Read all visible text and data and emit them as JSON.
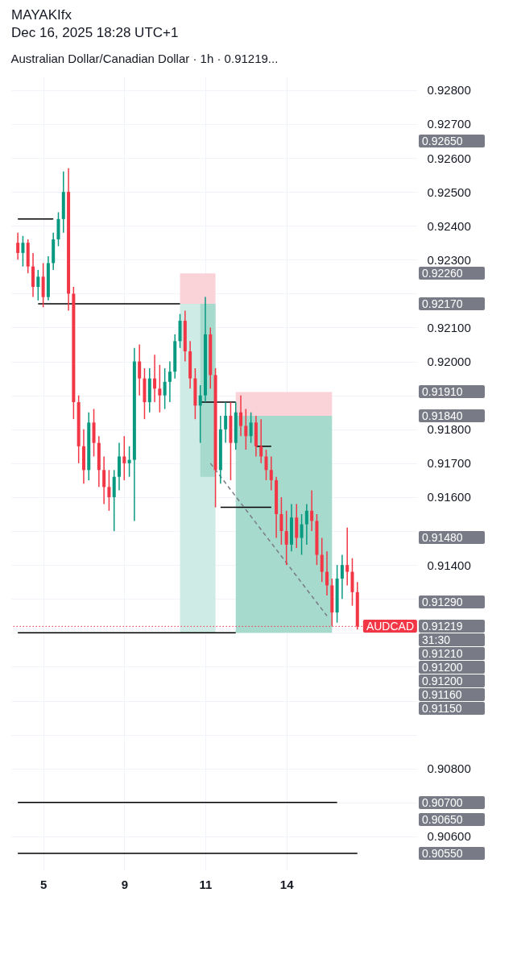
{
  "chart_data": {
    "type": "candlestick",
    "title": "Australian Dollar/Canadian Dollar · 1h · 0.91219...",
    "annotations": [
      "MAYAKIfx",
      "Dec 16, 2025 18:28 UTC+1",
      "0.92650",
      "0.92260",
      "0.92170",
      "0.91910",
      "0.91840",
      "0.91480",
      "0.91290",
      "0.91219",
      "31:30",
      "0.91210",
      "0.91200",
      "0.91200",
      "0.91160",
      "0.91150",
      "0.90700",
      "0.90650",
      "0.90550"
    ],
    "categories": [
      null,
      null,
      null,
      null,
      null,
      "5",
      null,
      null,
      null,
      null,
      null,
      null,
      null,
      null,
      null,
      null,
      null,
      null,
      null,
      null,
      null,
      "9",
      null,
      null,
      null,
      null,
      null,
      null,
      null,
      null,
      null,
      null,
      null,
      null,
      null,
      null,
      null,
      "11",
      null,
      null,
      null,
      null,
      null,
      null,
      null,
      null,
      null,
      null,
      null,
      null,
      null,
      null,
      null,
      "14",
      null,
      null,
      null,
      null,
      null,
      null,
      null,
      null,
      null,
      null,
      null,
      null,
      null,
      null
    ],
    "ohlc": [
      [
        0.9235,
        0.9238,
        0.923,
        0.9232
      ],
      [
        0.9232,
        0.9237,
        0.9228,
        0.9235
      ],
      [
        0.9235,
        0.9236,
        0.9226,
        0.9228
      ],
      [
        0.9228,
        0.9232,
        0.9219,
        0.9222
      ],
      [
        0.9222,
        0.9227,
        0.9218,
        0.9225
      ],
      [
        0.9225,
        0.9229,
        0.9216,
        0.9219
      ],
      [
        0.9219,
        0.9231,
        0.9218,
        0.9229
      ],
      [
        0.9229,
        0.9238,
        0.9227,
        0.9236
      ],
      [
        0.9236,
        0.9244,
        0.9234,
        0.9242
      ],
      [
        0.9242,
        0.9256,
        0.9238,
        0.925
      ],
      [
        0.925,
        0.9257,
        0.9215,
        0.922
      ],
      [
        0.922,
        0.9222,
        0.9183,
        0.9188
      ],
      [
        0.9188,
        0.919,
        0.917,
        0.9175
      ],
      [
        0.9175,
        0.918,
        0.9164,
        0.9168
      ],
      [
        0.9168,
        0.9185,
        0.9165,
        0.9182
      ],
      [
        0.9182,
        0.9186,
        0.9172,
        0.9176
      ],
      [
        0.9176,
        0.9178,
        0.9163,
        0.9168
      ],
      [
        0.9168,
        0.9172,
        0.9158,
        0.9163
      ],
      [
        0.9163,
        0.9168,
        0.9156,
        0.916
      ],
      [
        0.916,
        0.9168,
        0.915,
        0.9166
      ],
      [
        0.9166,
        0.9176,
        0.9162,
        0.9172
      ],
      [
        0.9172,
        0.9178,
        0.9165,
        0.917
      ],
      [
        0.917,
        0.9175,
        0.9166,
        0.9171
      ],
      [
        0.9171,
        0.9204,
        0.9153,
        0.92
      ],
      [
        0.92,
        0.9205,
        0.919,
        0.9195
      ],
      [
        0.9195,
        0.9198,
        0.9183,
        0.9188
      ],
      [
        0.9188,
        0.9198,
        0.9185,
        0.9195
      ],
      [
        0.9195,
        0.9202,
        0.9188,
        0.9192
      ],
      [
        0.9192,
        0.9199,
        0.9185,
        0.919
      ],
      [
        0.919,
        0.9198,
        0.9186,
        0.9194
      ],
      [
        0.9194,
        0.92,
        0.9188,
        0.9197
      ],
      [
        0.9197,
        0.9208,
        0.9195,
        0.9206
      ],
      [
        0.9206,
        0.9214,
        0.9204,
        0.9212
      ],
      [
        0.9212,
        0.9215,
        0.92,
        0.9203
      ],
      [
        0.9203,
        0.9206,
        0.9192,
        0.9195
      ],
      [
        0.9195,
        0.9198,
        0.9183,
        0.9187
      ],
      [
        0.9187,
        0.9193,
        0.9176,
        0.919
      ],
      [
        0.919,
        0.9219,
        0.9188,
        0.9208
      ],
      [
        0.9208,
        0.921,
        0.9192,
        0.9196
      ],
      [
        0.9196,
        0.9198,
        0.9157,
        0.9168
      ],
      [
        0.9168,
        0.9184,
        0.9164,
        0.918
      ],
      [
        0.918,
        0.9188,
        0.9176,
        0.9184
      ],
      [
        0.9184,
        0.9188,
        0.9165,
        0.9176
      ],
      [
        0.9176,
        0.9188,
        0.9174,
        0.9185
      ],
      [
        0.9185,
        0.919,
        0.9178,
        0.9181
      ],
      [
        0.9181,
        0.9186,
        0.9174,
        0.9178
      ],
      [
        0.9178,
        0.9185,
        0.9176,
        0.9182
      ],
      [
        0.9182,
        0.9184,
        0.9172,
        0.9175
      ],
      [
        0.9175,
        0.9183,
        0.917,
        0.9172
      ],
      [
        0.9172,
        0.9174,
        0.9165,
        0.9168
      ],
      [
        0.9168,
        0.9172,
        0.9162,
        0.9165
      ],
      [
        0.9165,
        0.9166,
        0.9148,
        0.9155
      ],
      [
        0.9155,
        0.916,
        0.9146,
        0.915
      ],
      [
        0.915,
        0.9156,
        0.914,
        0.9146
      ],
      [
        0.9146,
        0.9158,
        0.9144,
        0.9154
      ],
      [
        0.9154,
        0.9158,
        0.9145,
        0.9148
      ],
      [
        0.9148,
        0.9155,
        0.9143,
        0.9152
      ],
      [
        0.9152,
        0.9158,
        0.9146,
        0.9156
      ],
      [
        0.9156,
        0.9162,
        0.915,
        0.9153
      ],
      [
        0.9153,
        0.9155,
        0.914,
        0.9143
      ],
      [
        0.9143,
        0.9148,
        0.9135,
        0.9138
      ],
      [
        0.9138,
        0.9144,
        0.9131,
        0.9134
      ],
      [
        0.9134,
        0.9136,
        0.9122,
        0.9126
      ],
      [
        0.9126,
        0.914,
        0.9123,
        0.9136
      ],
      [
        0.9136,
        0.9143,
        0.913,
        0.914
      ],
      [
        0.914,
        0.9151,
        0.9134,
        0.9138
      ],
      [
        0.9138,
        0.9142,
        0.9128,
        0.9132
      ],
      [
        0.9132,
        0.9135,
        0.9121,
        0.91219
      ]
    ],
    "series": [
      {
        "type": "line",
        "color": "#cfebe5",
        "values": [
          null,
          null,
          null,
          null,
          null,
          null,
          null,
          null,
          null,
          null,
          null,
          null,
          null,
          null,
          null,
          null,
          null,
          null,
          null,
          null,
          null,
          null,
          null,
          null,
          null,
          null,
          null,
          null,
          null,
          null,
          null,
          null,
          null,
          null,
          null,
          null,
          null,
          null,
          null,
          null,
          null,
          null,
          null,
          null,
          null,
          null,
          null,
          null,
          null,
          null,
          null,
          null,
          null,
          null,
          null,
          null,
          null,
          null,
          null,
          null,
          null,
          null,
          null,
          null,
          null,
          null,
          null,
          null
        ],
        "lower": [
          null,
          null,
          null,
          null,
          null,
          null,
          null,
          null,
          null,
          null,
          null,
          null,
          null,
          null,
          null,
          null,
          null,
          null,
          null,
          null,
          null,
          null,
          null,
          null,
          null,
          null,
          null,
          null,
          null,
          null,
          null,
          null,
          0.912,
          0.912,
          0.912,
          0.912,
          0.912,
          0.912,
          0.912,
          0.912,
          null,
          null,
          null,
          null,
          null,
          null,
          null,
          null,
          null,
          null,
          null,
          null,
          null,
          null,
          null,
          null,
          null,
          null,
          null,
          null,
          null,
          null,
          null,
          null,
          null,
          null,
          null,
          null
        ],
        "upper": [
          null,
          null,
          null,
          null,
          null,
          null,
          null,
          null,
          null,
          null,
          null,
          null,
          null,
          null,
          null,
          null,
          null,
          null,
          null,
          null,
          null,
          null,
          null,
          null,
          null,
          null,
          null,
          null,
          null,
          null,
          null,
          null,
          0.9217,
          0.9217,
          0.9217,
          0.9217,
          0.9217,
          0.9217,
          0.9217,
          0.9217,
          null,
          null,
          null,
          null,
          null,
          null,
          null,
          null,
          null,
          null,
          null,
          null,
          null,
          null,
          null,
          null,
          null,
          null,
          null,
          null,
          null,
          null,
          null,
          null,
          null,
          null,
          null,
          null
        ]
      },
      {
        "type": "line",
        "color": "#f9d3d8",
        "values": [
          null,
          null,
          null,
          null,
          null,
          null,
          null,
          null,
          null,
          null,
          null,
          null,
          null,
          null,
          null,
          null,
          null,
          null,
          null,
          null,
          null,
          null,
          null,
          null,
          null,
          null,
          null,
          null,
          null,
          null,
          null,
          null,
          null,
          null,
          null,
          null,
          null,
          null,
          null,
          null,
          null,
          null,
          null,
          null,
          null,
          null,
          null,
          null,
          null,
          null,
          null,
          null,
          null,
          null,
          null,
          null,
          null,
          null,
          null,
          null,
          null,
          null,
          null,
          null,
          null,
          null,
          null,
          null
        ],
        "lower": [
          null,
          null,
          null,
          null,
          null,
          null,
          null,
          null,
          null,
          null,
          null,
          null,
          null,
          null,
          null,
          null,
          null,
          null,
          null,
          null,
          null,
          null,
          null,
          null,
          null,
          null,
          null,
          null,
          null,
          null,
          null,
          null,
          0.9217,
          0.9217,
          0.9217,
          0.9217,
          0.9217,
          0.9217,
          0.9217,
          0.9217,
          null,
          null,
          null,
          null,
          null,
          null,
          null,
          null,
          null,
          null,
          null,
          null,
          null,
          null,
          null,
          null,
          null,
          null,
          null,
          null,
          null,
          null,
          null,
          null,
          null,
          null,
          null,
          null
        ],
        "upper": [
          null,
          null,
          null,
          null,
          null,
          null,
          null,
          null,
          null,
          null,
          null,
          null,
          null,
          null,
          null,
          null,
          null,
          null,
          null,
          null,
          null,
          null,
          null,
          null,
          null,
          null,
          null,
          null,
          null,
          null,
          null,
          null,
          0.9226,
          0.9226,
          0.9226,
          0.9226,
          0.9226,
          0.9226,
          0.9226,
          0.9226,
          null,
          null,
          null,
          null,
          null,
          null,
          null,
          null,
          null,
          null,
          null,
          null,
          null,
          null,
          null,
          null,
          null,
          null,
          null,
          null,
          null,
          null,
          null,
          null,
          null,
          null,
          null,
          null
        ]
      },
      {
        "type": "line",
        "color": "#a6dacd",
        "values": [
          null,
          null,
          null,
          null,
          null,
          null,
          null,
          null,
          null,
          null,
          null,
          null,
          null,
          null,
          null,
          null,
          null,
          null,
          null,
          null,
          null,
          null,
          null,
          null,
          null,
          null,
          null,
          null,
          null,
          null,
          null,
          null,
          null,
          null,
          null,
          null,
          null,
          null,
          null,
          null,
          null,
          null,
          null,
          null,
          null,
          null,
          null,
          null,
          null,
          null,
          null,
          null,
          null,
          null,
          null,
          null,
          null,
          null,
          null,
          null,
          null,
          null,
          null,
          null,
          null,
          null,
          null,
          null
        ],
        "lower": [
          null,
          null,
          null,
          null,
          null,
          null,
          null,
          null,
          null,
          null,
          null,
          null,
          null,
          null,
          null,
          null,
          null,
          null,
          null,
          null,
          null,
          null,
          null,
          null,
          null,
          null,
          null,
          null,
          null,
          null,
          null,
          null,
          null,
          null,
          null,
          null,
          0.9166,
          0.9166,
          0.9166,
          0.9166,
          null,
          null,
          null,
          null,
          null,
          null,
          null,
          null,
          null,
          null,
          null,
          null,
          null,
          null,
          null,
          null,
          null,
          null,
          null,
          null,
          null,
          null,
          null,
          null,
          null,
          null,
          null,
          null
        ],
        "upper": [
          null,
          null,
          null,
          null,
          null,
          null,
          null,
          null,
          null,
          null,
          null,
          null,
          null,
          null,
          null,
          null,
          null,
          null,
          null,
          null,
          null,
          null,
          null,
          null,
          null,
          null,
          null,
          null,
          null,
          null,
          null,
          null,
          null,
          null,
          null,
          null,
          0.9217,
          0.9217,
          0.9217,
          0.9217,
          null,
          null,
          null,
          null,
          null,
          null,
          null,
          null,
          null,
          null,
          null,
          null,
          null,
          null,
          null,
          null,
          null,
          null,
          null,
          null,
          null,
          null,
          null,
          null,
          null,
          null,
          null,
          null
        ]
      },
      {
        "type": "line",
        "color": "#a6dacd",
        "values": [
          null,
          null,
          null,
          null,
          null,
          null,
          null,
          null,
          null,
          null,
          null,
          null,
          null,
          null,
          null,
          null,
          null,
          null,
          null,
          null,
          null,
          null,
          null,
          null,
          null,
          null,
          null,
          null,
          null,
          null,
          null,
          null,
          null,
          null,
          null,
          null,
          null,
          null,
          null,
          null,
          null,
          null,
          null,
          null,
          null,
          null,
          null,
          null,
          null,
          null,
          null,
          null,
          null,
          null,
          null,
          null,
          null,
          null,
          null,
          null,
          null,
          null,
          null,
          null,
          null,
          null,
          null,
          null
        ],
        "lower": [
          null,
          null,
          null,
          null,
          null,
          null,
          null,
          null,
          null,
          null,
          null,
          null,
          null,
          null,
          null,
          null,
          null,
          null,
          null,
          null,
          null,
          null,
          null,
          null,
          null,
          null,
          null,
          null,
          null,
          null,
          null,
          null,
          null,
          null,
          null,
          null,
          null,
          null,
          null,
          null,
          null,
          null,
          null,
          0.912,
          0.912,
          0.912,
          0.912,
          0.912,
          0.912,
          0.912,
          0.912,
          0.912,
          0.912,
          0.912,
          0.912,
          0.912,
          0.912,
          0.912,
          0.912,
          0.912,
          0.912,
          0.912,
          0.912,
          null,
          null,
          null,
          null,
          null
        ],
        "upper": [
          null,
          null,
          null,
          null,
          null,
          null,
          null,
          null,
          null,
          null,
          null,
          null,
          null,
          null,
          null,
          null,
          null,
          null,
          null,
          null,
          null,
          null,
          null,
          null,
          null,
          null,
          null,
          null,
          null,
          null,
          null,
          null,
          null,
          null,
          null,
          null,
          null,
          null,
          null,
          null,
          null,
          null,
          null,
          0.9184,
          0.9184,
          0.9184,
          0.9184,
          0.9184,
          0.9184,
          0.9184,
          0.9184,
          0.9184,
          0.9184,
          0.9184,
          0.9184,
          0.9184,
          0.9184,
          0.9184,
          0.9184,
          0.9184,
          0.9184,
          0.9184,
          0.9184,
          null,
          null,
          null,
          null,
          null
        ]
      },
      {
        "type": "line",
        "color": "#f9d3d8",
        "values": [
          null,
          null,
          null,
          null,
          null,
          null,
          null,
          null,
          null,
          null,
          null,
          null,
          null,
          null,
          null,
          null,
          null,
          null,
          null,
          null,
          null,
          null,
          null,
          null,
          null,
          null,
          null,
          null,
          null,
          null,
          null,
          null,
          null,
          null,
          null,
          null,
          null,
          null,
          null,
          null,
          null,
          null,
          null,
          null,
          null,
          null,
          null,
          null,
          null,
          null,
          null,
          null,
          null,
          null,
          null,
          null,
          null,
          null,
          null,
          null,
          null,
          null,
          null,
          null,
          null,
          null,
          null,
          null
        ],
        "lower": [
          null,
          null,
          null,
          null,
          null,
          null,
          null,
          null,
          null,
          null,
          null,
          null,
          null,
          null,
          null,
          null,
          null,
          null,
          null,
          null,
          null,
          null,
          null,
          null,
          null,
          null,
          null,
          null,
          null,
          null,
          null,
          null,
          null,
          null,
          null,
          null,
          null,
          null,
          null,
          null,
          null,
          null,
          null,
          0.9184,
          0.9184,
          0.9184,
          0.9184,
          0.9184,
          0.9184,
          0.9184,
          0.9184,
          0.9184,
          0.9184,
          0.9184,
          0.9184,
          0.9184,
          0.9184,
          0.9184,
          0.9184,
          0.9184,
          0.9184,
          0.9184,
          0.9184,
          null,
          null,
          null,
          null,
          null
        ],
        "upper": [
          null,
          null,
          null,
          null,
          null,
          null,
          null,
          null,
          null,
          null,
          null,
          null,
          null,
          null,
          null,
          null,
          null,
          null,
          null,
          null,
          null,
          null,
          null,
          null,
          null,
          null,
          null,
          null,
          null,
          null,
          null,
          null,
          null,
          null,
          null,
          null,
          null,
          null,
          null,
          null,
          null,
          null,
          null,
          0.9191,
          0.9191,
          0.9191,
          0.9191,
          0.9191,
          0.9191,
          0.9191,
          0.9191,
          0.9191,
          0.9191,
          0.9191,
          0.9191,
          0.9191,
          0.9191,
          0.9191,
          0.9191,
          0.9191,
          0.9191,
          0.9191,
          0.9191,
          null,
          null,
          null,
          null,
          null
        ]
      },
      {
        "type": "line",
        "color": "#000000",
        "line_style": "solid",
        "values": [
          0.9242,
          0.9242,
          0.9242,
          0.9242,
          0.9242,
          0.9242,
          0.9242,
          0.9242,
          null,
          null,
          null,
          null,
          null,
          null,
          null,
          null,
          null,
          null,
          null,
          null,
          null,
          null,
          null,
          null,
          null,
          null,
          null,
          null,
          null,
          null,
          null,
          null,
          null,
          null,
          null,
          null,
          null,
          null,
          null,
          null,
          null,
          null,
          null,
          null,
          null,
          null,
          null,
          null,
          null,
          null,
          null,
          null,
          null,
          null,
          null,
          null,
          null,
          null,
          null,
          null,
          null,
          null,
          null,
          null,
          null,
          null,
          null,
          null
        ]
      },
      {
        "type": "line",
        "color": "#000000",
        "line_style": "solid",
        "values": [
          null,
          null,
          null,
          null,
          0.9217,
          0.9217,
          0.9217,
          0.9217,
          0.9217,
          0.9217,
          0.9217,
          0.9217,
          0.9217,
          0.9217,
          0.9217,
          0.9217,
          0.9217,
          0.9217,
          0.9217,
          0.9217,
          0.9217,
          0.9217,
          0.9217,
          0.9217,
          0.9217,
          0.9217,
          0.9217,
          0.9217,
          0.9217,
          0.9217,
          0.9217,
          0.9217,
          0.9217,
          null,
          null,
          null,
          null,
          null,
          null,
          null,
          null,
          null,
          null,
          null,
          null,
          null,
          null,
          null,
          null,
          null,
          null,
          null,
          null,
          null,
          null,
          null,
          null,
          null,
          null,
          null,
          null,
          null,
          null,
          null,
          null,
          null,
          null,
          null
        ]
      },
      {
        "type": "line",
        "color": "#000000",
        "line_style": "solid",
        "values": [
          null,
          null,
          null,
          null,
          null,
          null,
          null,
          null,
          null,
          null,
          null,
          null,
          null,
          null,
          null,
          null,
          null,
          null,
          null,
          null,
          null,
          null,
          null,
          null,
          null,
          null,
          null,
          null,
          null,
          null,
          null,
          null,
          null,
          null,
          null,
          null,
          0.9188,
          0.9188,
          0.9188,
          0.9188,
          0.9188,
          0.9188,
          0.9188,
          0.9188,
          null,
          null,
          null,
          null,
          null,
          null,
          null,
          null,
          null,
          null,
          null,
          null,
          null,
          null,
          null,
          null,
          null,
          null,
          null,
          null,
          null,
          null,
          null,
          null
        ]
      },
      {
        "type": "line",
        "color": "#000000",
        "line_style": "solid",
        "values": [
          null,
          null,
          null,
          null,
          null,
          null,
          null,
          null,
          null,
          null,
          null,
          null,
          null,
          null,
          null,
          null,
          null,
          null,
          null,
          null,
          null,
          null,
          null,
          null,
          null,
          null,
          null,
          null,
          null,
          null,
          null,
          null,
          null,
          null,
          null,
          null,
          null,
          null,
          null,
          null,
          null,
          null,
          null,
          null,
          null,
          null,
          null,
          0.9175,
          0.9175,
          0.9175,
          0.9175,
          null,
          null,
          null,
          null,
          null,
          null,
          null,
          null,
          null,
          null,
          null,
          null,
          null,
          null,
          null,
          null,
          null
        ]
      },
      {
        "type": "line",
        "color": "#000000",
        "line_style": "solid",
        "values": [
          null,
          null,
          null,
          null,
          null,
          null,
          null,
          null,
          null,
          null,
          null,
          null,
          null,
          null,
          null,
          null,
          null,
          null,
          null,
          null,
          null,
          null,
          null,
          null,
          null,
          null,
          null,
          null,
          null,
          null,
          null,
          null,
          null,
          null,
          null,
          null,
          null,
          null,
          null,
          null,
          0.9157,
          0.9157,
          0.9157,
          0.9157,
          0.9157,
          0.9157,
          0.9157,
          0.9157,
          0.9157,
          0.9157,
          0.9157,
          null,
          null,
          null,
          null,
          null,
          null,
          null,
          null,
          null,
          null,
          null,
          null,
          null,
          null,
          null,
          null,
          null
        ]
      },
      {
        "type": "line",
        "color": "#000000",
        "line_style": "solid",
        "values": [
          0.912,
          0.912,
          0.912,
          0.912,
          0.912,
          0.912,
          0.912,
          0.912,
          0.912,
          0.912,
          0.912,
          0.912,
          0.912,
          0.912,
          0.912,
          0.912,
          0.912,
          0.912,
          0.912,
          0.912,
          0.912,
          0.912,
          0.912,
          0.912,
          0.912,
          0.912,
          0.912,
          0.912,
          0.912,
          0.912,
          0.912,
          0.912,
          0.912,
          0.912,
          0.912,
          0.912,
          0.912,
          0.912,
          0.912,
          0.912,
          0.912,
          0.912,
          0.912,
          0.912,
          null,
          null,
          null,
          null,
          null,
          null,
          null,
          null,
          null,
          null,
          null,
          null,
          null,
          null,
          null,
          null,
          null,
          null,
          null,
          null,
          null,
          null,
          null,
          null
        ]
      },
      {
        "type": "line",
        "color": "#000000",
        "line_style": "solid",
        "values": [
          0.907,
          0.907,
          0.907,
          0.907,
          0.907,
          0.907,
          0.907,
          0.907,
          0.907,
          0.907,
          0.907,
          0.907,
          0.907,
          0.907,
          0.907,
          0.907,
          0.907,
          0.907,
          0.907,
          0.907,
          0.907,
          0.907,
          0.907,
          0.907,
          0.907,
          0.907,
          0.907,
          0.907,
          0.907,
          0.907,
          0.907,
          0.907,
          0.907,
          0.907,
          0.907,
          0.907,
          0.907,
          0.907,
          0.907,
          0.907,
          0.907,
          0.907,
          0.907,
          0.907,
          0.907,
          0.907,
          0.907,
          0.907,
          0.907,
          0.907,
          0.907,
          0.907,
          0.907,
          0.907,
          0.907,
          0.907,
          0.907,
          0.907,
          0.907,
          0.907,
          0.907,
          0.907,
          0.907,
          0.907,
          null,
          null,
          null,
          null
        ]
      },
      {
        "type": "line",
        "color": "#000000",
        "line_style": "solid",
        "values": [
          0.9055,
          0.9055,
          0.9055,
          0.9055,
          0.9055,
          0.9055,
          0.9055,
          0.9055,
          0.9055,
          0.9055,
          0.9055,
          0.9055,
          0.9055,
          0.9055,
          0.9055,
          0.9055,
          0.9055,
          0.9055,
          0.9055,
          0.9055,
          0.9055,
          0.9055,
          0.9055,
          0.9055,
          0.9055,
          0.9055,
          0.9055,
          0.9055,
          0.9055,
          0.9055,
          0.9055,
          0.9055,
          0.9055,
          0.9055,
          0.9055,
          0.9055,
          0.9055,
          0.9055,
          0.9055,
          0.9055,
          0.9055,
          0.9055,
          0.9055,
          0.9055,
          0.9055,
          0.9055,
          0.9055,
          0.9055,
          0.9055,
          0.9055,
          0.9055,
          0.9055,
          0.9055,
          0.9055,
          0.9055,
          0.9055,
          0.9055,
          0.9055,
          0.9055,
          0.9055,
          0.9055,
          0.9055,
          0.9055,
          0.9055,
          0.9055,
          0.9055,
          0.9055,
          0.9055
        ]
      },
      {
        "type": "line",
        "color": "#787b86",
        "line_style": "dashed",
        "values": [
          null,
          null,
          null,
          null,
          null,
          null,
          null,
          null,
          null,
          null,
          null,
          null,
          null,
          null,
          null,
          null,
          null,
          null,
          null,
          null,
          null,
          null,
          null,
          null,
          null,
          null,
          null,
          null,
          null,
          null,
          null,
          null,
          null,
          null,
          null,
          null,
          null,
          null,
          0.917,
          null,
          null,
          null,
          null,
          null,
          null,
          null,
          null,
          null,
          null,
          null,
          null,
          null,
          null,
          null,
          null,
          null,
          null,
          null,
          null,
          null,
          null,
          0.9125,
          null,
          null,
          null,
          null,
          null,
          null
        ]
      }
    ],
    "ref_lines": [
      {
        "axis": "y",
        "value": 0.91219,
        "label": "AUDCAD",
        "color": "#f23645",
        "line_style": "dotted"
      }
    ],
    "ylim": [
      0.905,
      0.9284
    ],
    "yticks": [
      {
        "value": 0.906,
        "label": "0.90600"
      },
      {
        "value": 0.907,
        "label": null
      },
      {
        "value": 0.908,
        "label": "0.90800"
      },
      {
        "value": 0.909,
        "label": null
      },
      {
        "value": 0.91,
        "label": null
      },
      {
        "value": 0.911,
        "label": null
      },
      {
        "value": 0.912,
        "label": null
      },
      {
        "value": 0.913,
        "label": null
      },
      {
        "value": 0.914,
        "label": "0.91400"
      },
      {
        "value": 0.915,
        "label": null
      },
      {
        "value": 0.916,
        "label": "0.91600"
      },
      {
        "value": 0.917,
        "label": "0.91700"
      },
      {
        "value": 0.918,
        "label": "0.91800"
      },
      {
        "value": 0.919,
        "label": null
      },
      {
        "value": 0.92,
        "label": "0.92000"
      },
      {
        "value": 0.921,
        "label": "0.92100"
      },
      {
        "value": 0.922,
        "label": null
      },
      {
        "value": 0.923,
        "label": "0.92300"
      },
      {
        "value": 0.924,
        "label": "0.92400"
      },
      {
        "value": 0.925,
        "label": "0.92500"
      },
      {
        "value": 0.926,
        "label": "0.92600"
      },
      {
        "value": 0.927,
        "label": "0.92700"
      },
      {
        "value": 0.928,
        "label": "0.92800"
      }
    ],
    "grid": true
  }
}
